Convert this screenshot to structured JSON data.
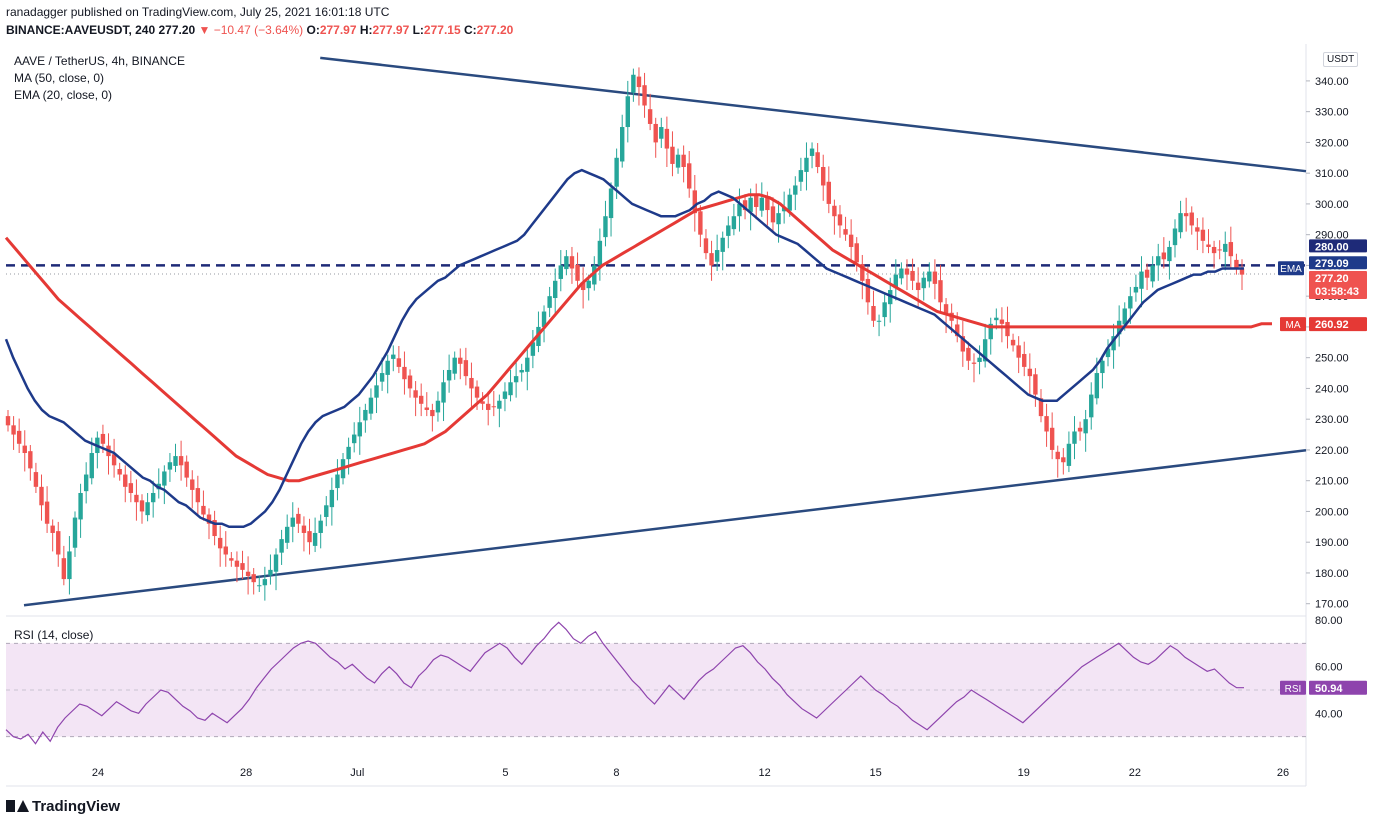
{
  "header": {
    "published_line": "ranadagger published on TradingView.com, July 25, 2021 16:01:18 UTC",
    "symbol_line": "BINANCE:AAVEUSDT, 240",
    "last": "277.20",
    "change": "▼ −10.47 (−3.64%)",
    "o_label": "O:",
    "o": "277.97",
    "h_label": "H:",
    "h": "277.97",
    "l_label": "L:",
    "l": "277.15",
    "c_label": "C:",
    "c": "277.20"
  },
  "legend": {
    "symbol": "AAVE / TetherUS, 4h, BINANCE",
    "ma": "MA (50, close, 0)",
    "ema": "EMA (20, close, 0)",
    "rsi": "RSI (14, close)"
  },
  "currency_badge": "USDT",
  "price_labels": {
    "level": "280.00",
    "ema_tag": "EMA",
    "ema_value": "279.09",
    "last": "277.20",
    "countdown": "03:58:43",
    "ma_tag": "MA",
    "ma_value": "260.92",
    "rsi_tag": "RSI",
    "rsi_value": "50.94"
  },
  "colors": {
    "up": "#26a69a",
    "down": "#ef5350",
    "ema": "#1e3a8a",
    "ma": "#e53935",
    "trendline": "#2a4a7f",
    "rsi": "#8e44ad",
    "rsi_band": "#f3e5f5"
  },
  "brand": "TradingView",
  "chart_data": {
    "type": "candlestick",
    "timeframe": "4h",
    "y_ticks": [
      170,
      180,
      190,
      200,
      210,
      220,
      230,
      240,
      250,
      260,
      270,
      280,
      290,
      300,
      310,
      320,
      330,
      340
    ],
    "ylim": [
      166,
      352
    ],
    "x_ticks": [
      "24",
      "28",
      "Jul",
      "5",
      "8",
      "12",
      "15",
      "19",
      "22",
      "26"
    ],
    "support_resistance_level": 280.0,
    "trendlines": [
      {
        "name": "upper",
        "from": [
          "2021-06-30",
          347.5
        ],
        "to": [
          "2021-07-26",
          311.5
        ]
      },
      {
        "name": "lower",
        "from": [
          "2021-06-22",
          169.5
        ],
        "to": [
          "2021-07-26",
          219.0
        ]
      }
    ],
    "ohlc_close": [
      228,
      225,
      222,
      219,
      214,
      208,
      202,
      196,
      193,
      186,
      178,
      187,
      198,
      206,
      212,
      219,
      224,
      222,
      218,
      215,
      212,
      208,
      206,
      203,
      200,
      203,
      206,
      209,
      213,
      216,
      218,
      215,
      211,
      207,
      203,
      199,
      196,
      192,
      188,
      186,
      184,
      182,
      181,
      179,
      177,
      176,
      178,
      181,
      186,
      191,
      195,
      198,
      196,
      193,
      190,
      193,
      197,
      202,
      207,
      212,
      217,
      221,
      225,
      229,
      233,
      237,
      241,
      245,
      249,
      251,
      247,
      243,
      240,
      237,
      235,
      233,
      231,
      236,
      242,
      246,
      250,
      248,
      244,
      240,
      237,
      235,
      233,
      234,
      236,
      239,
      242,
      244,
      246,
      250,
      255,
      260,
      265,
      270,
      275,
      280,
      283,
      279,
      275,
      272,
      275,
      280,
      288,
      296,
      305,
      315,
      325,
      335,
      342,
      338,
      332,
      326,
      320,
      325,
      318,
      313,
      316,
      312,
      305,
      297,
      290,
      284,
      280,
      285,
      289,
      293,
      296,
      300,
      298,
      302,
      299,
      302,
      298,
      294,
      297,
      299,
      303,
      306,
      311,
      315,
      318,
      312,
      306,
      300,
      296,
      293,
      290,
      286,
      281,
      275,
      268,
      262,
      262,
      268,
      272,
      277,
      279,
      277,
      275,
      272,
      276,
      278,
      274,
      268,
      264,
      262,
      257,
      252,
      249,
      248,
      250,
      256,
      261,
      263,
      261,
      257,
      254,
      250,
      247,
      244,
      238,
      231,
      226,
      220,
      217,
      216,
      222,
      226,
      226,
      230,
      238,
      245,
      249,
      253,
      257,
      262,
      266,
      270,
      273,
      278,
      276,
      280,
      283,
      282,
      286,
      292,
      297,
      296,
      293,
      291,
      288,
      286,
      284,
      285,
      287,
      283,
      279,
      277
    ],
    "ema20": [
      256,
      250,
      245,
      240,
      236,
      233,
      231,
      230,
      229,
      227,
      225,
      223,
      222,
      221,
      220,
      219,
      217,
      215,
      213,
      211,
      210,
      208,
      207,
      205,
      203,
      202,
      200,
      198,
      197,
      196,
      196,
      195,
      195,
      195,
      196,
      198,
      200,
      203,
      207,
      212,
      217,
      222,
      226,
      229,
      231,
      232,
      233,
      234,
      236,
      238,
      241,
      244,
      248,
      252,
      257,
      262,
      266,
      269,
      271,
      273,
      275,
      276,
      278,
      280,
      281,
      282,
      283,
      284,
      285,
      286,
      287,
      288,
      290,
      293,
      296,
      299,
      302,
      305,
      308,
      310,
      311,
      310,
      309,
      308,
      306,
      304,
      302,
      300,
      299,
      298,
      297,
      296,
      296,
      296,
      297,
      298,
      300,
      301,
      303,
      304,
      303,
      302,
      300,
      298,
      296,
      294,
      292,
      290,
      289,
      288,
      287,
      285,
      283,
      281,
      279,
      278,
      277,
      276,
      275,
      274,
      273,
      272,
      271,
      270,
      269,
      268,
      267,
      266,
      265,
      264,
      262,
      260,
      258,
      256,
      254,
      252,
      250,
      248,
      246,
      244,
      242,
      240,
      238,
      237,
      236,
      236,
      236,
      238,
      240,
      242,
      244,
      246,
      249,
      253,
      256,
      259,
      262,
      265,
      268,
      270,
      272,
      273,
      274,
      275,
      276,
      277,
      277,
      278,
      278,
      279,
      279,
      279,
      279
    ],
    "ma50": [
      289,
      285,
      281,
      277,
      273,
      269,
      266,
      263,
      260,
      257,
      254,
      251,
      248,
      245,
      242,
      239,
      236,
      233,
      230,
      227,
      224,
      221,
      218,
      216,
      214,
      212,
      211,
      210,
      210,
      211,
      212,
      213,
      214,
      215,
      216,
      217,
      218,
      219,
      220,
      221,
      222,
      224,
      226,
      229,
      232,
      235,
      238,
      242,
      246,
      250,
      254,
      258,
      262,
      266,
      270,
      274,
      277,
      280,
      282,
      284,
      286,
      288,
      290,
      292,
      294,
      296,
      298,
      299,
      300,
      301,
      302,
      303,
      303,
      302,
      300,
      297,
      294,
      291,
      288,
      285,
      283,
      281,
      279,
      277,
      275,
      273,
      271,
      269,
      267,
      265,
      264,
      263,
      262,
      261,
      260,
      260,
      260,
      260,
      260,
      260,
      260,
      260,
      260,
      260,
      260,
      260,
      260,
      260,
      260,
      260,
      260,
      260,
      260,
      260,
      260,
      260,
      260,
      260,
      260,
      260,
      261,
      261
    ],
    "rsi": {
      "ylim": [
        20,
        80
      ],
      "ticks": [
        40,
        60,
        80
      ],
      "upper_band": 70,
      "lower_band": 30,
      "last": 50.94,
      "values": [
        33,
        30,
        29,
        31,
        27,
        32,
        28,
        34,
        38,
        41,
        44,
        43,
        41,
        39,
        42,
        45,
        43,
        41,
        40,
        44,
        47,
        50,
        49,
        46,
        43,
        41,
        38,
        37,
        40,
        38,
        36,
        39,
        42,
        46,
        51,
        55,
        59,
        62,
        65,
        68,
        70,
        71,
        70,
        67,
        64,
        62,
        59,
        61,
        58,
        55,
        53,
        57,
        60,
        57,
        53,
        51,
        56,
        59,
        63,
        65,
        64,
        62,
        60,
        58,
        62,
        66,
        68,
        70,
        68,
        64,
        61,
        65,
        69,
        72,
        76,
        79,
        76,
        72,
        70,
        73,
        75,
        70,
        66,
        62,
        58,
        54,
        51,
        47,
        44,
        48,
        52,
        49,
        46,
        50,
        54,
        57,
        59,
        62,
        65,
        68,
        69,
        66,
        62,
        59,
        55,
        52,
        48,
        45,
        42,
        40,
        38,
        41,
        44,
        47,
        50,
        53,
        56,
        53,
        50,
        48,
        45,
        43,
        40,
        37,
        35,
        33,
        36,
        39,
        42,
        45,
        47,
        50,
        48,
        46,
        44,
        42,
        40,
        38,
        36,
        39,
        42,
        45,
        48,
        51,
        54,
        57,
        60,
        62,
        64,
        66,
        68,
        70,
        67,
        64,
        62,
        61,
        63,
        66,
        69,
        67,
        64,
        62,
        60,
        58,
        59,
        56,
        53,
        51,
        51
      ]
    }
  }
}
